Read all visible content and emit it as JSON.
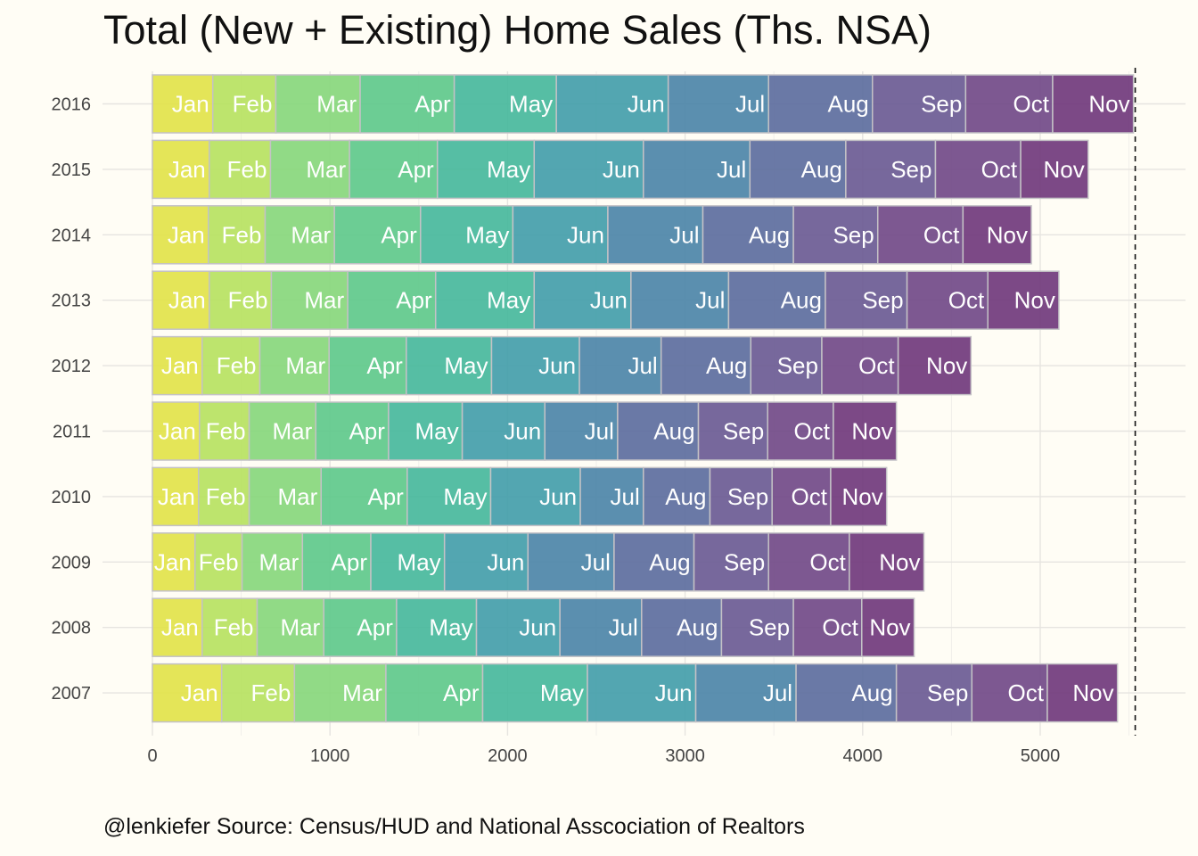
{
  "chart_data": {
    "type": "bar",
    "orientation": "horizontal",
    "stacked": true,
    "title": "Total (New + Existing) Home Sales (Ths. NSA)",
    "caption": "@lenkiefer Source: Census/HUD and National Asscociation of Realtors",
    "xlabel": "",
    "ylabel": "",
    "xlim": [
      0,
      5600
    ],
    "x_ticks": [
      0,
      1000,
      2000,
      3000,
      4000,
      5000
    ],
    "reference_line_x": 5535,
    "grid": true,
    "legend": "none",
    "categories": [
      "2016",
      "2015",
      "2014",
      "2013",
      "2012",
      "2011",
      "2010",
      "2009",
      "2008",
      "2007"
    ],
    "series": [
      {
        "name": "Jan",
        "color": "#e2e34a",
        "values": [
          340,
          320,
          315,
          320,
          280,
          265,
          260,
          240,
          280,
          390
        ]
      },
      {
        "name": "Feb",
        "color": "#b7e261",
        "values": [
          355,
          345,
          320,
          350,
          325,
          280,
          285,
          265,
          310,
          410
        ]
      },
      {
        "name": "Mar",
        "color": "#88d77c",
        "values": [
          475,
          445,
          390,
          430,
          390,
          375,
          405,
          340,
          375,
          515
        ]
      },
      {
        "name": "Apr",
        "color": "#60c98b",
        "values": [
          530,
          495,
          485,
          495,
          435,
          410,
          485,
          385,
          410,
          545
        ]
      },
      {
        "name": "May",
        "color": "#48b89c",
        "values": [
          575,
          545,
          520,
          555,
          480,
          415,
          470,
          415,
          450,
          590
        ]
      },
      {
        "name": "Jun",
        "color": "#449eaa",
        "values": [
          630,
          615,
          535,
          545,
          495,
          465,
          505,
          470,
          470,
          610
        ]
      },
      {
        "name": "Jul",
        "color": "#4d86a8",
        "values": [
          565,
          600,
          535,
          550,
          460,
          410,
          355,
          485,
          460,
          565
        ]
      },
      {
        "name": "Aug",
        "color": "#5d6e9e",
        "values": [
          585,
          540,
          510,
          545,
          505,
          455,
          375,
          450,
          450,
          565
        ]
      },
      {
        "name": "Sep",
        "color": "#6b5b94",
        "values": [
          525,
          505,
          475,
          460,
          400,
          390,
          350,
          420,
          405,
          425
        ]
      },
      {
        "name": "Oct",
        "color": "#724a88",
        "values": [
          490,
          480,
          480,
          455,
          430,
          370,
          330,
          455,
          385,
          425
        ]
      },
      {
        "name": "Nov",
        "color": "#713a7c",
        "values": [
          455,
          380,
          385,
          400,
          410,
          355,
          315,
          420,
          295,
          395
        ]
      }
    ]
  }
}
